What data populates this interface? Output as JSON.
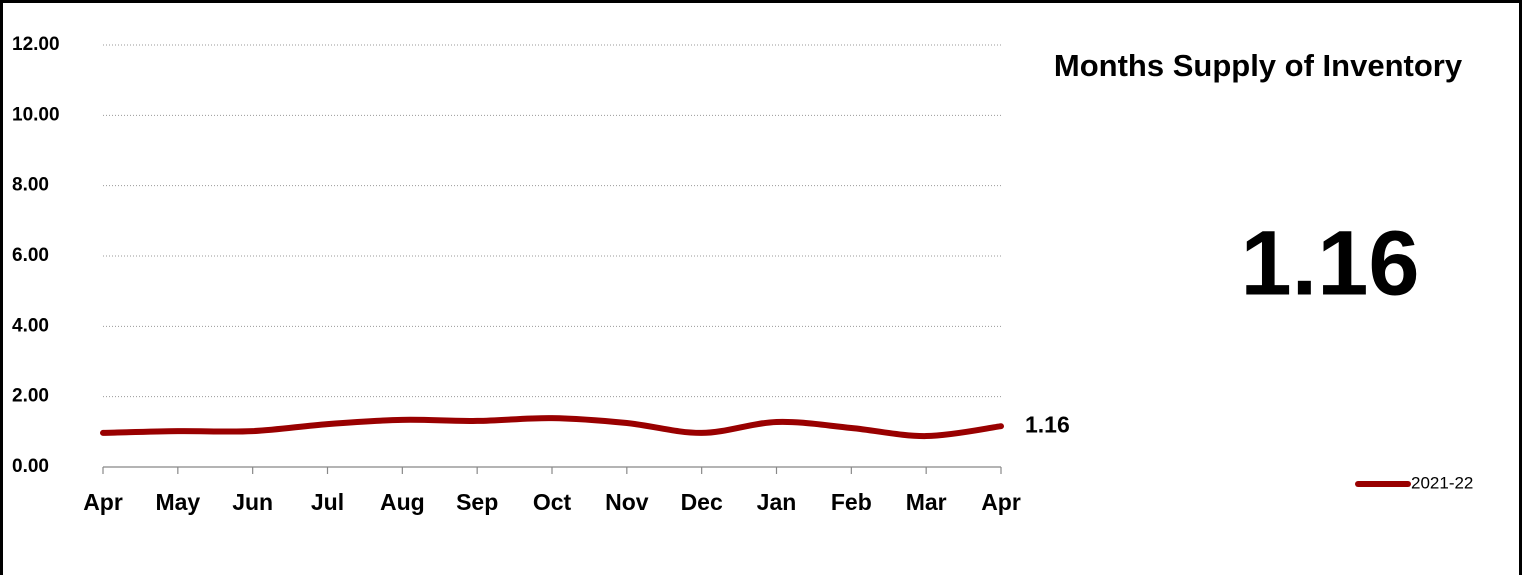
{
  "chart_data": {
    "type": "line",
    "title": "Months Supply of Inventory",
    "categories": [
      "Apr",
      "May",
      "Jun",
      "Jul",
      "Aug",
      "Sep",
      "Oct",
      "Nov",
      "Dec",
      "Jan",
      "Feb",
      "Mar",
      "Apr"
    ],
    "series": [
      {
        "name": "2021-22",
        "color": "#990000",
        "values": [
          0.97,
          1.02,
          1.02,
          1.22,
          1.34,
          1.31,
          1.39,
          1.25,
          0.97,
          1.28,
          1.11,
          0.88,
          1.16
        ]
      }
    ],
    "ylim": [
      0,
      12
    ],
    "yticks": [
      {
        "value": 0,
        "label": "0.00"
      },
      {
        "value": 2,
        "label": "2.00"
      },
      {
        "value": 4,
        "label": "4.00"
      },
      {
        "value": 6,
        "label": "6.00"
      },
      {
        "value": 8,
        "label": "8.00"
      },
      {
        "value": 10,
        "label": "10.00"
      },
      {
        "value": 12,
        "label": "12.00"
      }
    ],
    "grid": true,
    "legend": "bottom-right"
  }
}
